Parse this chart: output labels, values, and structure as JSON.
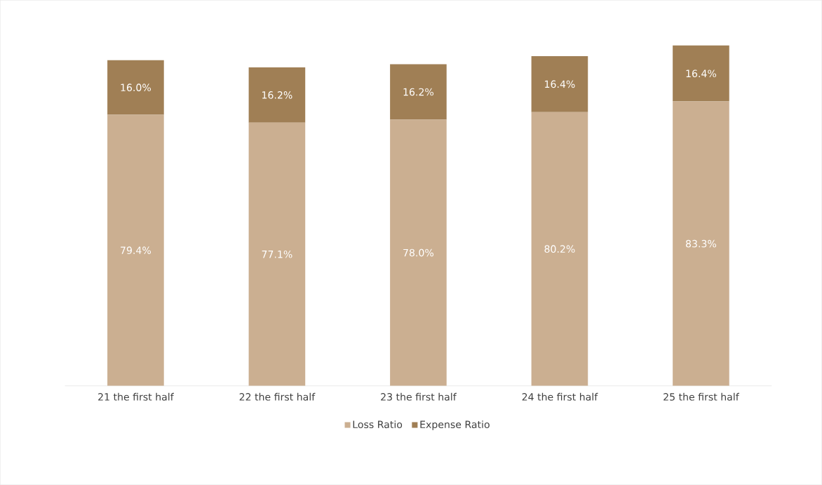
{
  "chart_data": {
    "type": "bar",
    "stacked": true,
    "categories": [
      "21 the first half",
      "22 the first half",
      "23 the first half",
      "24 the first half",
      "25 the first half"
    ],
    "series": [
      {
        "name": "Loss Ratio",
        "color": "#cbaf91",
        "values": [
          79.4,
          77.1,
          78.0,
          80.2,
          83.3
        ],
        "value_labels": [
          "79.4%",
          "77.1%",
          "78.0%",
          "80.2%",
          "83.3%"
        ]
      },
      {
        "name": "Expense Ratio",
        "color": "#a07f55",
        "values": [
          16.0,
          16.2,
          16.2,
          16.4,
          16.4
        ],
        "value_labels": [
          "16.0%",
          "16.2%",
          "16.2%",
          "16.4%",
          "16.4%"
        ]
      }
    ],
    "ylim": [
      0,
      100
    ],
    "tick_labels": "x",
    "grid": false,
    "legend": "bottom"
  }
}
